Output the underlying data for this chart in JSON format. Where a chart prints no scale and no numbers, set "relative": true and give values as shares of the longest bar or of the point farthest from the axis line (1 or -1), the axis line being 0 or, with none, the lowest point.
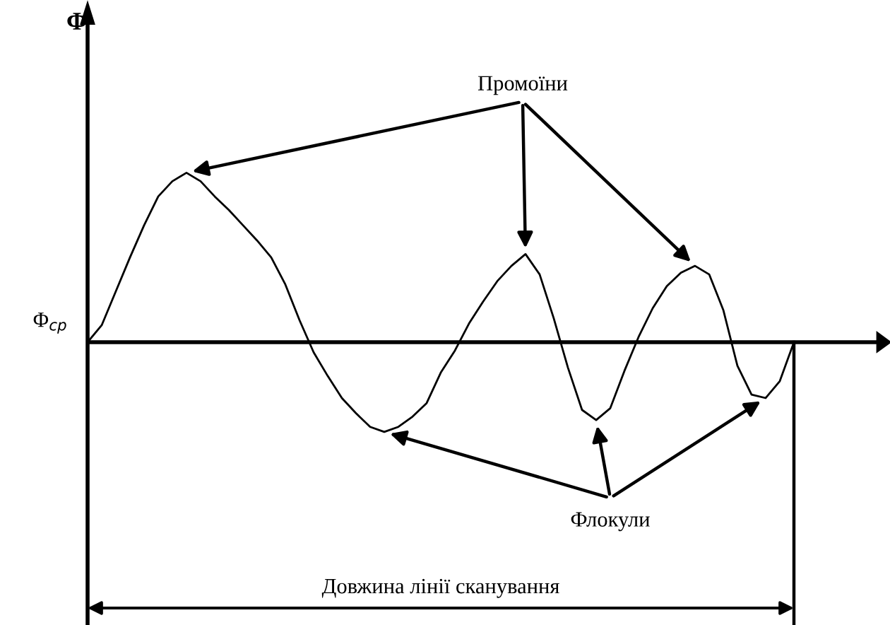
{
  "chart_data": {
    "type": "line",
    "relative": true,
    "color": "#000000",
    "categories": [
      null,
      null,
      null,
      null,
      null,
      null,
      null,
      null,
      null,
      null,
      null,
      null,
      null,
      null,
      null,
      null,
      null,
      null,
      null,
      null,
      null,
      null,
      null,
      null,
      null,
      null,
      null,
      null,
      null,
      null,
      null,
      null,
      null,
      null,
      null,
      null,
      null,
      null,
      null,
      null,
      null,
      null,
      null,
      null,
      null,
      null,
      null,
      null,
      null,
      null,
      null
    ],
    "values": [
      0,
      0.1,
      0.3,
      0.5,
      0.69,
      0.86,
      0.95,
      1.0,
      0.95,
      0.86,
      0.78,
      0.69,
      0.6,
      0.5,
      0.34,
      0.13,
      -0.06,
      -0.2,
      -0.33,
      -0.42,
      -0.5,
      -0.53,
      -0.5,
      -0.44,
      -0.36,
      -0.18,
      -0.05,
      0.11,
      0.24,
      0.36,
      0.45,
      0.52,
      0.4,
      0.14,
      -0.15,
      -0.4,
      -0.46,
      -0.39,
      -0.17,
      0.03,
      0.2,
      0.33,
      0.41,
      0.45,
      0.4,
      0.19,
      -0.14,
      -0.31,
      -0.33,
      -0.23,
      0
    ],
    "ref_lines": [
      {
        "axis": "y",
        "value": 0,
        "label": "Φ$_{ср}$"
      }
    ],
    "annotations": [
      "Промоїни",
      "Флокули",
      "Довжина лінії сканування",
      "Φ"
    ]
  }
}
